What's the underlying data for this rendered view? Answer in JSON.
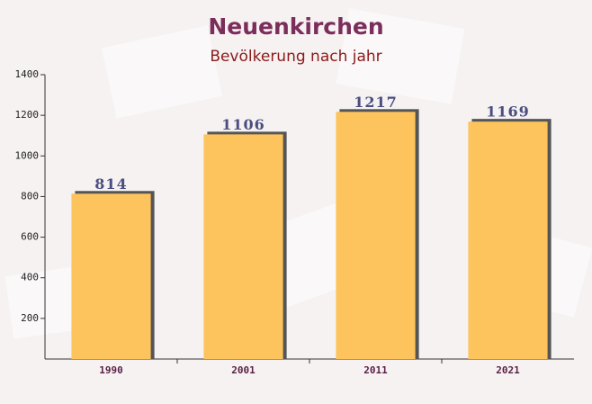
{
  "chart_data": {
    "type": "bar",
    "title": "Neuenkirchen",
    "subtitle": "Bevölkerung nach jahr",
    "categories": [
      "1990",
      "2001",
      "2011",
      "2021"
    ],
    "values": [
      814,
      1106,
      1217,
      1169
    ],
    "color": "#fdc35c",
    "ylim": [
      0,
      1400
    ],
    "yticks": [
      200,
      400,
      600,
      800,
      1000,
      1200,
      1400
    ]
  }
}
